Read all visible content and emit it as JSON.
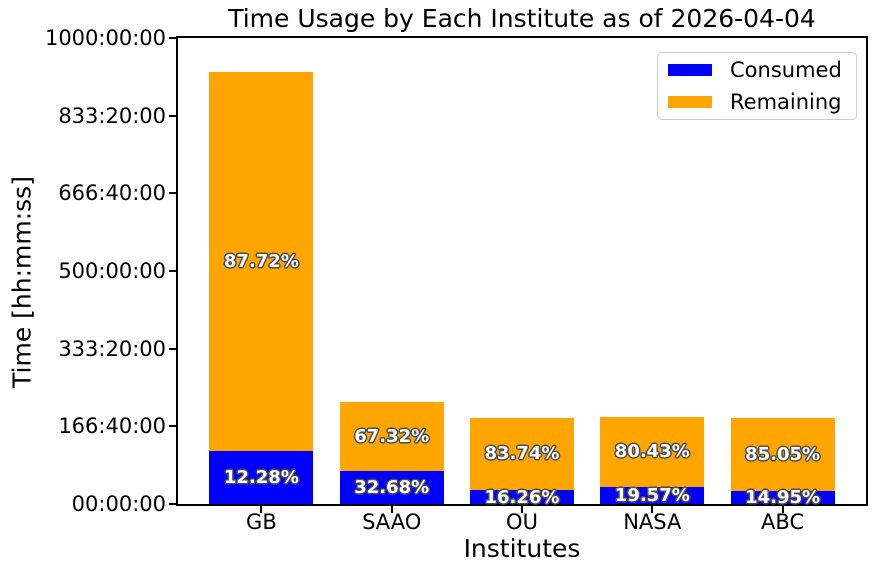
{
  "title": "Time Usage by Each Institute as of 2026-04-04",
  "axes": {
    "x_label": "Institutes",
    "y_label": "Time [hh:mm:ss]",
    "y_ticks": [
      "00:00:00",
      "166:40:00",
      "333:20:00",
      "500:00:00",
      "666:40:00",
      "833:20:00",
      "1000:00:00"
    ],
    "y_axis_max_hours": 1000
  },
  "legend": {
    "position": "upper-right",
    "items": [
      {
        "label": "Consumed",
        "color": "#0000ff"
      },
      {
        "label": "Remaining",
        "color": "#ffa500"
      }
    ]
  },
  "colors": {
    "consumed": "#0000ff",
    "remaining": "#ffa500",
    "bar_label_text": "#ffffff",
    "bar_label_outline": "#4d4d4d",
    "axis": "#000000",
    "legend_border": "#cccccc",
    "background": "#ffffff"
  },
  "chart_data": {
    "type": "bar",
    "stacked": true,
    "title": "Time Usage by Each Institute as of 2026-04-04",
    "xlabel": "Institutes",
    "ylabel": "Time [hh:mm:ss]",
    "ylim_hours": [
      0,
      1000
    ],
    "grid": false,
    "legend_position": "upper right",
    "categories": [
      "GB",
      "SAAO",
      "OU",
      "NASA",
      "ABC"
    ],
    "total_hours_est": [
      927,
      218,
      185,
      187,
      184
    ],
    "series": [
      {
        "name": "Consumed",
        "color": "#0000ff",
        "pct_of_total": [
          12.28,
          32.68,
          16.26,
          19.57,
          14.95
        ],
        "labels": [
          "12.28%",
          "32.68%",
          "16.26%",
          "19.57%",
          "14.95%"
        ]
      },
      {
        "name": "Remaining",
        "color": "#ffa500",
        "pct_of_total": [
          87.72,
          67.32,
          83.74,
          80.43,
          85.05
        ],
        "labels": [
          "87.72%",
          "67.32%",
          "83.74%",
          "80.43%",
          "85.05%"
        ]
      }
    ]
  }
}
